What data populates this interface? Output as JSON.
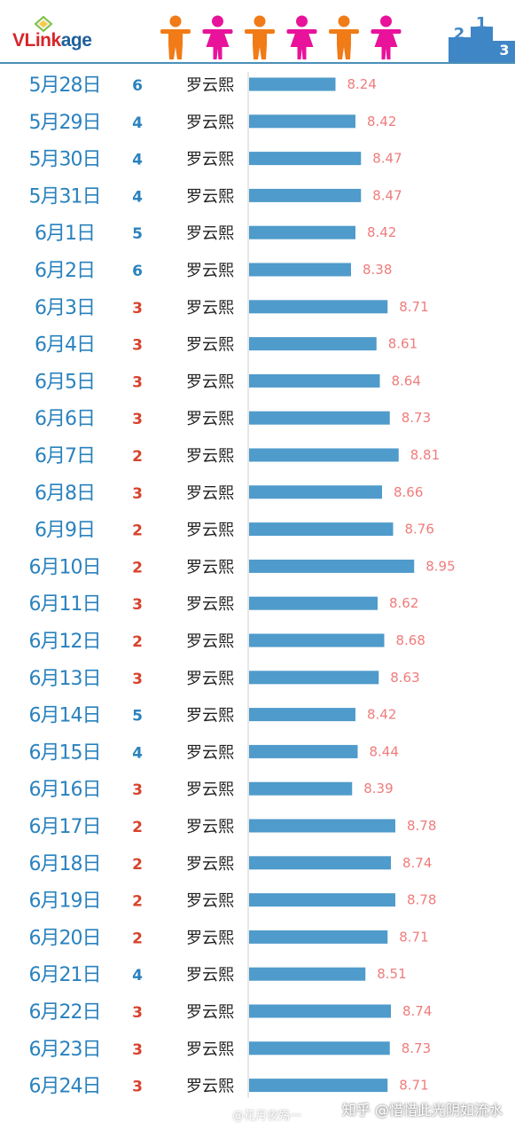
{
  "brand": {
    "logo_part1": "VLink",
    "logo_part2": "age"
  },
  "colors": {
    "bar": "#4f9bcb",
    "value": "#f07c7c",
    "date": "#2a82be",
    "rank_blue": "#2a82be",
    "rank_red": "#d8432e",
    "figure_orange": "#f07b17",
    "figure_pink": "#e8139a",
    "podium": "#3f86c6"
  },
  "watermark": {
    "text": "知乎 @惜惜此光阴如流水",
    "small": "@花月夜殇一"
  },
  "chart_data": {
    "type": "bar",
    "orientation": "horizontal",
    "categories": [
      "5月28日",
      "5月29日",
      "5月30日",
      "5月31日",
      "6月1日",
      "6月2日",
      "6月3日",
      "6月4日",
      "6月5日",
      "6月6日",
      "6月7日",
      "6月8日",
      "6月9日",
      "6月10日",
      "6月11日",
      "6月12日",
      "6月13日",
      "6月14日",
      "6月15日",
      "6月16日",
      "6月17日",
      "6月18日",
      "6月19日",
      "6月20日",
      "6月21日",
      "6月22日",
      "6月23日",
      "6月24日"
    ],
    "ranks": [
      6,
      4,
      4,
      4,
      5,
      6,
      3,
      3,
      3,
      3,
      2,
      3,
      2,
      2,
      3,
      2,
      3,
      5,
      4,
      3,
      2,
      2,
      2,
      2,
      4,
      3,
      3,
      3
    ],
    "names": [
      "罗云熙",
      "罗云熙",
      "罗云熙",
      "罗云熙",
      "罗云熙",
      "罗云熙",
      "罗云熙",
      "罗云熙",
      "罗云熙",
      "罗云熙",
      "罗云熙",
      "罗云熙",
      "罗云熙",
      "罗云熙",
      "罗云熙",
      "罗云熙",
      "罗云熙",
      "罗云熙",
      "罗云熙",
      "罗云熙",
      "罗云熙",
      "罗云熙",
      "罗云熙",
      "罗云熙",
      "罗云熙",
      "罗云熙",
      "罗云熙",
      "罗云熙"
    ],
    "values": [
      8.24,
      8.42,
      8.47,
      8.47,
      8.42,
      8.38,
      8.71,
      8.61,
      8.64,
      8.73,
      8.81,
      8.66,
      8.76,
      8.95,
      8.62,
      8.68,
      8.63,
      8.42,
      8.44,
      8.39,
      8.78,
      8.74,
      8.78,
      8.71,
      8.51,
      8.74,
      8.73,
      8.71
    ],
    "labels": [
      "8.24",
      "8.42",
      "8.47",
      "8.47",
      "8.42",
      "8.38",
      "8.71",
      "8.61",
      "8.64",
      "8.73",
      "8.81",
      "8.66",
      "8.76",
      "8.95",
      "8.62",
      "8.68",
      "8.63",
      "8.42",
      "8.44",
      "8.39",
      "8.78",
      "8.74",
      "8.78",
      "8.71",
      "8.51",
      "8.74",
      "8.73",
      "8.71"
    ],
    "rank_red_at_or_below": 3
  }
}
